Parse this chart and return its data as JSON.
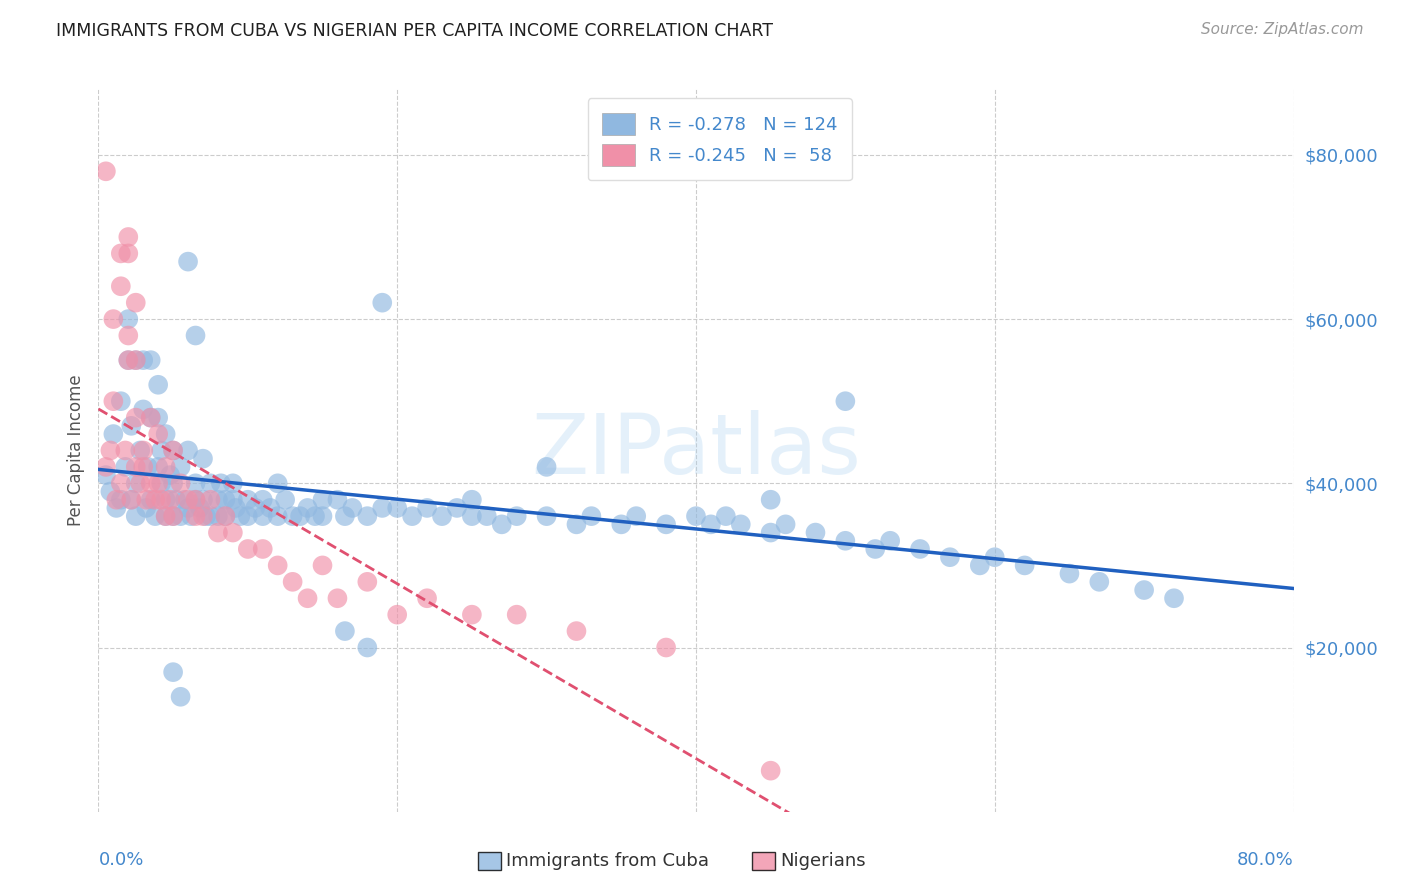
{
  "title": "IMMIGRANTS FROM CUBA VS NIGERIAN PER CAPITA INCOME CORRELATION CHART",
  "source": "Source: ZipAtlas.com",
  "ylabel": "Per Capita Income",
  "ytick_labels": [
    "$20,000",
    "$40,000",
    "$60,000",
    "$80,000"
  ],
  "ytick_values": [
    20000,
    40000,
    60000,
    80000
  ],
  "ymax": 88000,
  "ymin": 0,
  "xmin": 0.0,
  "xmax": 0.8,
  "cuba_color": "#90b8e0",
  "nigeria_color": "#f090a8",
  "cuba_line_color": "#2060c0",
  "nigeria_line_color": "#e05070",
  "watermark_text": "ZIPatlas",
  "background_color": "#ffffff",
  "title_color": "#202020",
  "axis_color": "#4488cc",
  "grid_color": "#cccccc",
  "legend_label_cuba": "R = -0.278   N = 124",
  "legend_label_nig": "R = -0.245   N =  58",
  "bottom_label_cuba": "Immigrants from Cuba",
  "bottom_label_nig": "Nigerians",
  "cuba_points_x": [
    0.005,
    0.008,
    0.01,
    0.012,
    0.015,
    0.015,
    0.018,
    0.02,
    0.02,
    0.022,
    0.022,
    0.025,
    0.025,
    0.025,
    0.028,
    0.03,
    0.03,
    0.032,
    0.033,
    0.035,
    0.035,
    0.035,
    0.038,
    0.04,
    0.04,
    0.04,
    0.042,
    0.042,
    0.045,
    0.045,
    0.045,
    0.048,
    0.05,
    0.05,
    0.05,
    0.052,
    0.055,
    0.055,
    0.058,
    0.06,
    0.06,
    0.062,
    0.065,
    0.065,
    0.068,
    0.07,
    0.07,
    0.072,
    0.075,
    0.075,
    0.08,
    0.08,
    0.082,
    0.085,
    0.085,
    0.09,
    0.09,
    0.092,
    0.095,
    0.1,
    0.1,
    0.105,
    0.11,
    0.11,
    0.115,
    0.12,
    0.12,
    0.125,
    0.13,
    0.135,
    0.14,
    0.145,
    0.15,
    0.15,
    0.16,
    0.165,
    0.17,
    0.18,
    0.19,
    0.2,
    0.21,
    0.22,
    0.23,
    0.24,
    0.25,
    0.25,
    0.26,
    0.27,
    0.28,
    0.3,
    0.32,
    0.33,
    0.35,
    0.36,
    0.38,
    0.4,
    0.41,
    0.42,
    0.43,
    0.45,
    0.46,
    0.48,
    0.5,
    0.52,
    0.53,
    0.55,
    0.57,
    0.59,
    0.6,
    0.62,
    0.65,
    0.67,
    0.7,
    0.72,
    0.45,
    0.5,
    0.3,
    0.19,
    0.065,
    0.06,
    0.055,
    0.05,
    0.18,
    0.165
  ],
  "cuba_points_y": [
    41000,
    39000,
    46000,
    37000,
    50000,
    38000,
    42000,
    55000,
    60000,
    38000,
    47000,
    55000,
    40000,
    36000,
    44000,
    49000,
    55000,
    37000,
    42000,
    55000,
    48000,
    38000,
    36000,
    52000,
    48000,
    42000,
    44000,
    40000,
    46000,
    38000,
    36000,
    41000,
    44000,
    40000,
    36000,
    38000,
    42000,
    36000,
    38000,
    44000,
    37000,
    36000,
    40000,
    38000,
    37000,
    43000,
    38000,
    36000,
    40000,
    36000,
    38000,
    36000,
    40000,
    38000,
    36000,
    40000,
    38000,
    37000,
    36000,
    38000,
    36000,
    37000,
    38000,
    36000,
    37000,
    40000,
    36000,
    38000,
    36000,
    36000,
    37000,
    36000,
    38000,
    36000,
    38000,
    36000,
    37000,
    36000,
    37000,
    37000,
    36000,
    37000,
    36000,
    37000,
    38000,
    36000,
    36000,
    35000,
    36000,
    36000,
    35000,
    36000,
    35000,
    36000,
    35000,
    36000,
    35000,
    36000,
    35000,
    34000,
    35000,
    34000,
    33000,
    32000,
    33000,
    32000,
    31000,
    30000,
    31000,
    30000,
    29000,
    28000,
    27000,
    26000,
    38000,
    50000,
    42000,
    62000,
    58000,
    67000,
    14000,
    17000,
    20000,
    22000
  ],
  "nigeria_points_x": [
    0.005,
    0.008,
    0.01,
    0.012,
    0.015,
    0.015,
    0.018,
    0.02,
    0.02,
    0.022,
    0.025,
    0.025,
    0.028,
    0.03,
    0.03,
    0.032,
    0.035,
    0.035,
    0.038,
    0.04,
    0.04,
    0.042,
    0.045,
    0.045,
    0.048,
    0.05,
    0.05,
    0.055,
    0.06,
    0.065,
    0.065,
    0.07,
    0.075,
    0.08,
    0.085,
    0.09,
    0.1,
    0.11,
    0.12,
    0.13,
    0.14,
    0.15,
    0.16,
    0.18,
    0.2,
    0.22,
    0.25,
    0.28,
    0.32,
    0.38,
    0.01,
    0.015,
    0.02,
    0.02,
    0.025,
    0.025,
    0.005,
    0.45
  ],
  "nigeria_points_y": [
    42000,
    44000,
    50000,
    38000,
    68000,
    40000,
    44000,
    55000,
    58000,
    38000,
    55000,
    42000,
    40000,
    44000,
    42000,
    38000,
    48000,
    40000,
    38000,
    46000,
    40000,
    38000,
    42000,
    36000,
    38000,
    44000,
    36000,
    40000,
    38000,
    36000,
    38000,
    36000,
    38000,
    34000,
    36000,
    34000,
    32000,
    32000,
    30000,
    28000,
    26000,
    30000,
    26000,
    28000,
    24000,
    26000,
    24000,
    24000,
    22000,
    20000,
    60000,
    64000,
    68000,
    70000,
    62000,
    48000,
    78000,
    5000
  ]
}
